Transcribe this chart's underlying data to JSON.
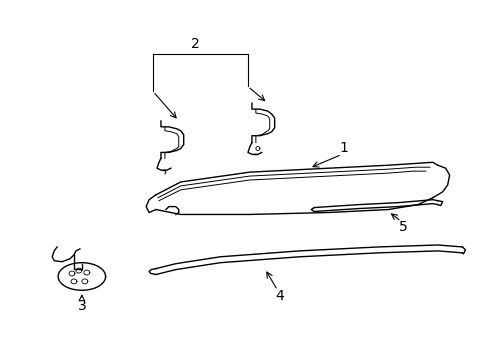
{
  "background_color": "#ffffff",
  "line_color": "#000000",
  "label_color": "#000000",
  "fig_width": 4.89,
  "fig_height": 3.6,
  "dpi": 100,
  "label_fontsize": 10
}
